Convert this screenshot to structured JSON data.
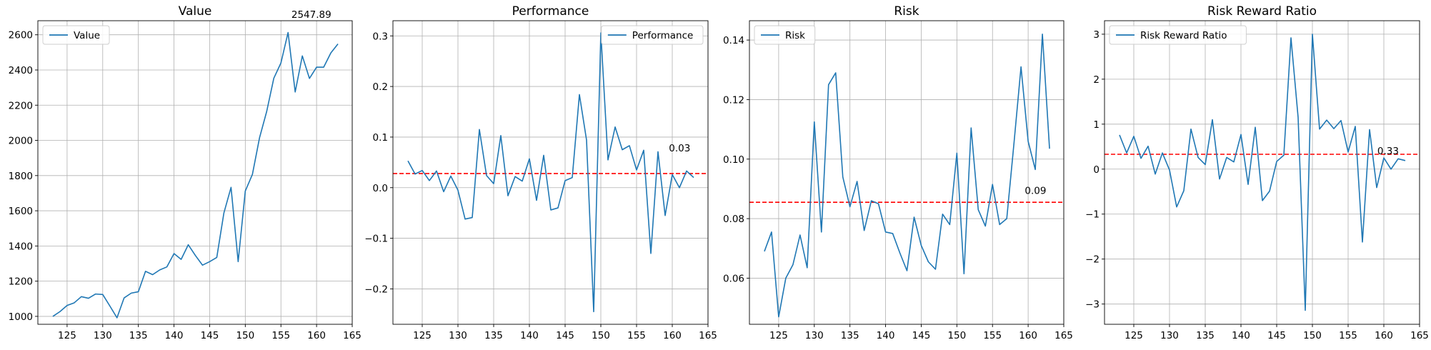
{
  "chart_data": [
    {
      "type": "line",
      "title": "Value",
      "xlabel": "",
      "ylabel": "",
      "xlim": [
        120.9,
        165
      ],
      "ylim": [
        955,
        2680
      ],
      "xticks": [
        125,
        130,
        135,
        140,
        145,
        150,
        155,
        160,
        165
      ],
      "xtick_labels": [
        "125",
        "130",
        "135",
        "140",
        "145",
        "150",
        "155",
        "160",
        "165"
      ],
      "yticks": [
        1000,
        1200,
        1400,
        1600,
        1800,
        2000,
        2200,
        2400,
        2600
      ],
      "ytick_labels": [
        "1000",
        "1200",
        "1400",
        "1600",
        "1800",
        "2000",
        "2200",
        "2400",
        "2600"
      ],
      "grid": true,
      "legend": "upper left",
      "color": "#1f77b4",
      "series": [
        {
          "name": "Value",
          "x": [
            123,
            124,
            125,
            126,
            127,
            128,
            129,
            130,
            131,
            132,
            133,
            134,
            135,
            136,
            137,
            138,
            139,
            140,
            141,
            142,
            143,
            144,
            145,
            146,
            147,
            148,
            149,
            150,
            151,
            152,
            153,
            154,
            155,
            156,
            157,
            158,
            159,
            160,
            161,
            162,
            163
          ],
          "values": [
            1000,
            1027,
            1062,
            1077,
            1112,
            1103,
            1127,
            1124,
            1059,
            992,
            1105,
            1132,
            1140,
            1256,
            1237,
            1264,
            1281,
            1357,
            1324,
            1407,
            1346,
            1291,
            1311,
            1335,
            1588,
            1733,
            1311,
            1712,
            1807,
            2015,
            2164,
            2353,
            2440,
            2613,
            2275,
            2480,
            2352,
            2416,
            2416,
            2497,
            2547.89
          ]
        }
      ],
      "annotation": "2547.89"
    },
    {
      "type": "line",
      "title": "Performance",
      "xlabel": "",
      "ylabel": "",
      "xlim": [
        120.9,
        165
      ],
      "ylim": [
        -0.27,
        0.33
      ],
      "xticks": [
        125,
        130,
        135,
        140,
        145,
        150,
        155,
        160,
        165
      ],
      "xtick_labels": [
        "125",
        "130",
        "135",
        "140",
        "145",
        "150",
        "155",
        "160",
        "165"
      ],
      "yticks": [
        -0.2,
        -0.1,
        0.0,
        0.1,
        0.2,
        0.3
      ],
      "ytick_labels": [
        "−0.2",
        "−0.1",
        "0.0",
        "0.1",
        "0.2",
        "0.3"
      ],
      "grid": true,
      "legend": "upper right",
      "color": "#1f77b4",
      "mean_line": 0.028,
      "mean_color": "#ff0000",
      "series": [
        {
          "name": "Performance",
          "x": [
            123,
            124,
            125,
            126,
            127,
            128,
            129,
            130,
            131,
            132,
            133,
            134,
            135,
            136,
            137,
            138,
            139,
            140,
            141,
            142,
            143,
            144,
            145,
            146,
            147,
            148,
            149,
            150,
            151,
            152,
            153,
            154,
            155,
            156,
            157,
            158,
            159,
            160,
            161,
            162,
            163
          ],
          "values": [
            0.053,
            0.027,
            0.034,
            0.014,
            0.033,
            -0.008,
            0.023,
            -0.005,
            -0.062,
            -0.059,
            0.115,
            0.024,
            0.008,
            0.103,
            -0.016,
            0.022,
            0.013,
            0.057,
            -0.025,
            0.064,
            -0.044,
            -0.04,
            0.014,
            0.02,
            0.184,
            0.094,
            -0.245,
            0.306,
            0.055,
            0.12,
            0.075,
            0.083,
            0.035,
            0.074,
            -0.13,
            0.071,
            -0.055,
            0.026,
            0.0,
            0.033,
            0.02
          ]
        }
      ],
      "annotation": "0.03"
    },
    {
      "type": "line",
      "title": "Risk",
      "xlabel": "",
      "ylabel": "",
      "xlim": [
        120.9,
        165
      ],
      "ylim": [
        0.0445,
        0.1465
      ],
      "xticks": [
        125,
        130,
        135,
        140,
        145,
        150,
        155,
        160,
        165
      ],
      "xtick_labels": [
        "125",
        "130",
        "135",
        "140",
        "145",
        "150",
        "155",
        "160",
        "165"
      ],
      "yticks": [
        0.06,
        0.08,
        0.1,
        0.12,
        0.14
      ],
      "ytick_labels": [
        "0.06",
        "0.08",
        "0.10",
        "0.12",
        "0.14"
      ],
      "grid": true,
      "legend": "upper left",
      "color": "#1f77b4",
      "mean_line": 0.0855,
      "mean_color": "#ff0000",
      "series": [
        {
          "name": "Risk",
          "x": [
            123,
            124,
            125,
            126,
            127,
            128,
            129,
            130,
            131,
            132,
            133,
            134,
            135,
            136,
            137,
            138,
            139,
            140,
            141,
            142,
            143,
            144,
            145,
            146,
            147,
            148,
            149,
            150,
            151,
            152,
            153,
            154,
            155,
            156,
            157,
            158,
            159,
            160,
            161,
            162,
            163
          ],
          "values": [
            0.069,
            0.0755,
            0.047,
            0.06,
            0.0645,
            0.0745,
            0.0635,
            0.1125,
            0.0755,
            0.125,
            0.129,
            0.094,
            0.084,
            0.0925,
            0.076,
            0.086,
            0.085,
            0.0755,
            0.075,
            0.0685,
            0.0625,
            0.0805,
            0.071,
            0.0655,
            0.063,
            0.0815,
            0.078,
            0.102,
            0.0615,
            0.1105,
            0.083,
            0.0775,
            0.0915,
            0.078,
            0.08,
            0.105,
            0.131,
            0.106,
            0.0965,
            0.142,
            0.1035
          ]
        }
      ],
      "annotation": "0.09"
    },
    {
      "type": "line",
      "title": "Risk Reward Ratio",
      "xlabel": "",
      "ylabel": "",
      "xlim": [
        120.9,
        165
      ],
      "ylim": [
        -3.45,
        3.3
      ],
      "xticks": [
        125,
        130,
        135,
        140,
        145,
        150,
        155,
        160,
        165
      ],
      "xtick_labels": [
        "125",
        "130",
        "135",
        "140",
        "145",
        "150",
        "155",
        "160",
        "165"
      ],
      "yticks": [
        -3,
        -2,
        -1,
        0,
        1,
        2,
        3
      ],
      "ytick_labels": [
        "−3",
        "−2",
        "−1",
        "0",
        "1",
        "2",
        "3"
      ],
      "grid": true,
      "legend": "upper left",
      "color": "#1f77b4",
      "mean_line": 0.33,
      "mean_color": "#ff0000",
      "series": [
        {
          "name": "Risk Reward Ratio",
          "x": [
            123,
            124,
            125,
            126,
            127,
            128,
            129,
            130,
            131,
            132,
            133,
            134,
            135,
            136,
            137,
            138,
            139,
            140,
            141,
            142,
            143,
            144,
            145,
            146,
            147,
            148,
            149,
            150,
            151,
            152,
            153,
            154,
            155,
            156,
            157,
            158,
            159,
            160,
            161,
            162,
            163
          ],
          "values": [
            0.76,
            0.36,
            0.73,
            0.24,
            0.51,
            -0.11,
            0.36,
            -0.02,
            -0.84,
            -0.48,
            0.89,
            0.26,
            0.1,
            1.1,
            -0.22,
            0.26,
            0.16,
            0.77,
            -0.34,
            0.93,
            -0.7,
            -0.49,
            0.17,
            0.31,
            2.92,
            1.15,
            -3.14,
            3.0,
            0.89,
            1.09,
            0.9,
            1.08,
            0.38,
            0.95,
            -1.62,
            0.88,
            -0.41,
            0.25,
            0.0,
            0.23,
            0.19
          ]
        }
      ],
      "annotation": "0.33"
    }
  ]
}
